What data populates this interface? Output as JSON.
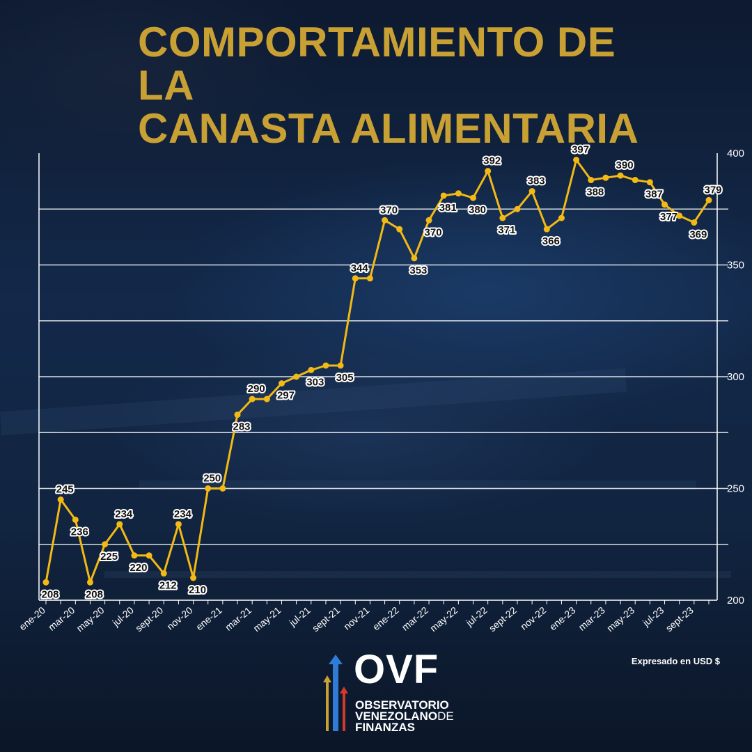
{
  "title_line1": "COMPORTAMIENTO DE LA",
  "title_line2": "CANASTA ALIMENTARIA",
  "unit_note": "Expresado en USD $",
  "brand": {
    "short": "OVF",
    "line1": "OBSERVATORIO",
    "line2a": "VENEZOLANO",
    "line2b": "DE",
    "line3": "FINANZAS"
  },
  "colors": {
    "title": "#c8a033",
    "line": "#f3b915",
    "grid": "#ffffff",
    "arrow_blue": "#2f7bd6",
    "arrow_gold": "#c8a033",
    "arrow_red": "#d23a2a"
  },
  "chart_data": {
    "type": "line",
    "title": "COMPORTAMIENTO DE LA CANASTA ALIMENTARIA",
    "ylabel": "",
    "xlabel": "",
    "ylim": [
      200,
      400
    ],
    "y_ticks": [
      200,
      250,
      300,
      350,
      400
    ],
    "grid": true,
    "x_tick_labels": [
      "ene-20",
      "mar-20",
      "may-20",
      "jul-20",
      "sept-20",
      "nov-20",
      "ene-21",
      "mar-21",
      "may-21",
      "jul-21",
      "sept-21",
      "nov-21",
      "ene-22",
      "mar-22",
      "may-22",
      "jul-22",
      "sept-22",
      "nov-22",
      "ene-23",
      "mar-23",
      "may-23",
      "jul-23",
      "sept-23"
    ],
    "series": [
      {
        "name": "",
        "values": [
          208,
          245,
          236,
          208,
          225,
          234,
          220,
          220,
          212,
          234,
          210,
          250,
          250,
          283,
          290,
          290,
          297,
          300,
          303,
          305,
          305,
          344,
          344,
          370,
          366,
          353,
          370,
          381,
          382,
          380,
          392,
          371,
          375,
          383,
          366,
          371,
          397,
          388,
          389,
          390,
          388,
          387,
          377,
          372,
          369,
          379
        ],
        "labels": [
          "208",
          "245",
          "236",
          "208",
          "225",
          "234",
          "220",
          "",
          "212",
          "234",
          "210",
          "250",
          "",
          "283",
          "290",
          "",
          "297",
          "",
          "303",
          "",
          "305",
          "344",
          "",
          "370",
          "",
          "353",
          "370",
          "381",
          "",
          "380",
          "392",
          "371",
          "",
          "383",
          "366",
          "",
          "397",
          "388",
          "",
          "390",
          "",
          "387",
          "377",
          "",
          "369",
          "379"
        ]
      }
    ]
  }
}
